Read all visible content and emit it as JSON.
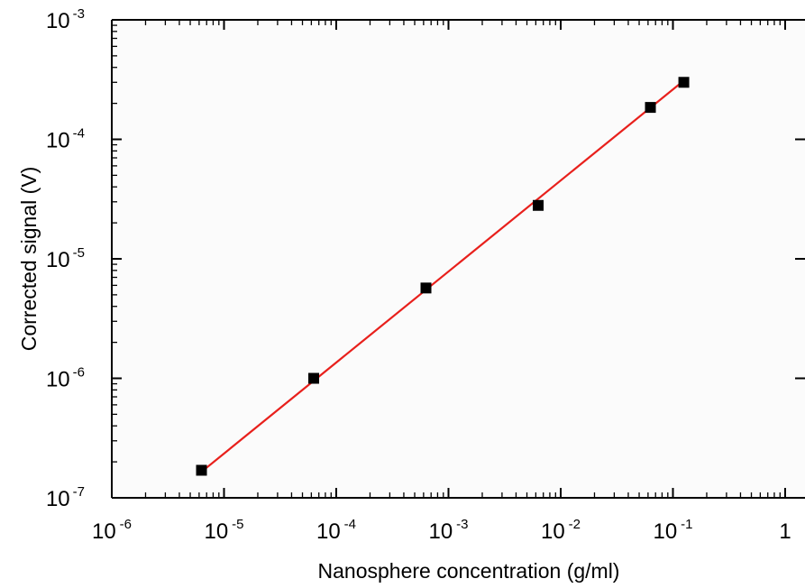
{
  "chart_data": {
    "type": "scatter",
    "title": "",
    "xlabel": "Nanosphere concentration (g/ml)",
    "ylabel": "Corrected signal (V)",
    "xscale": "log",
    "yscale": "log",
    "xlim": [
      1e-06,
      1
    ],
    "ylim": [
      1e-07,
      0.001
    ],
    "x_tick_labels": [
      {
        "base": "10",
        "exp": "-6"
      },
      {
        "base": "10",
        "exp": "-5"
      },
      {
        "base": "10",
        "exp": "-4"
      },
      {
        "base": "10",
        "exp": "-3"
      },
      {
        "base": "10",
        "exp": "-2"
      },
      {
        "base": "10",
        "exp": "-1"
      },
      {
        "base": "1",
        "exp": ""
      }
    ],
    "y_tick_labels": [
      {
        "base": "10",
        "exp": "-7"
      },
      {
        "base": "10",
        "exp": "-6"
      },
      {
        "base": "10",
        "exp": "-5"
      },
      {
        "base": "10",
        "exp": "-4"
      },
      {
        "base": "10",
        "exp": "-3"
      }
    ],
    "grid": false,
    "series": [
      {
        "kind": "points",
        "marker": "square",
        "color": "#000000",
        "x": [
          6.3e-06,
          6.3e-05,
          0.00063,
          0.0063,
          0.063,
          0.125
        ],
        "y": [
          1.7e-07,
          1e-06,
          5.7e-06,
          2.8e-05,
          0.000185,
          0.0003
        ]
      },
      {
        "kind": "fit-line",
        "color": "#e8201c",
        "x": [
          6.3e-06,
          0.125
        ],
        "y": [
          1.65e-07,
          0.00031
        ]
      }
    ]
  }
}
